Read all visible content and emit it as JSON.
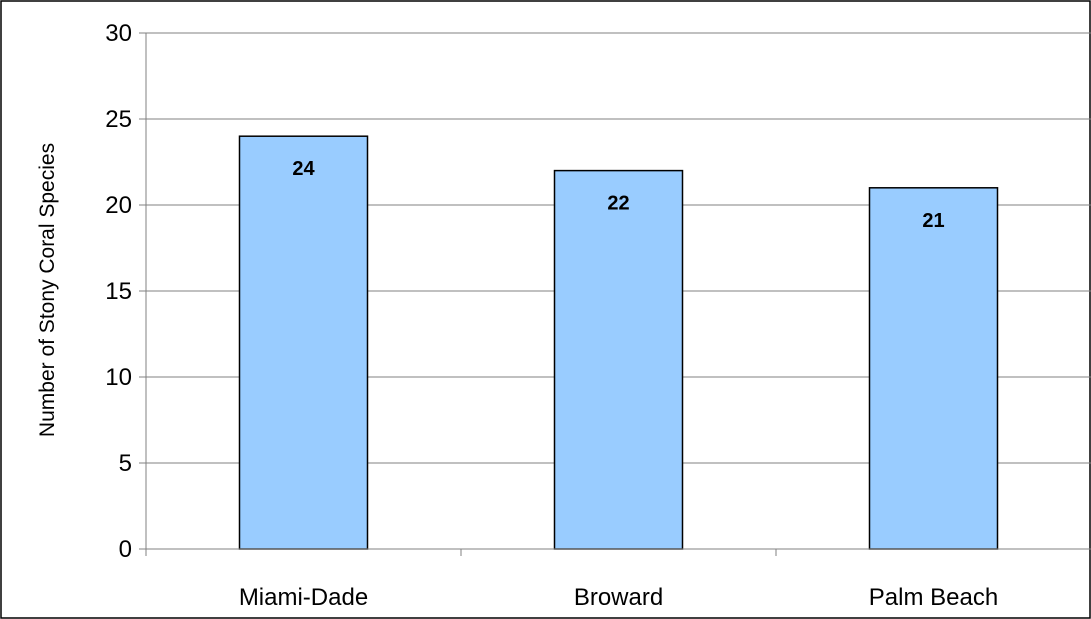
{
  "chart_data": {
    "type": "bar",
    "title": "",
    "xlabel": "",
    "ylabel": "Number of Stony Coral Species",
    "categories": [
      "Miami-Dade",
      "Broward",
      "Palm Beach"
    ],
    "values": [
      24,
      22,
      21
    ],
    "data_labels": [
      "24",
      "22",
      "21"
    ],
    "ylim": [
      0,
      30
    ],
    "yticks": [
      0,
      5,
      10,
      15,
      20,
      25,
      30
    ],
    "ytick_labels": [
      "0",
      "5",
      "10",
      "15",
      "20",
      "25",
      "30"
    ],
    "grid": true,
    "legend": "none",
    "colors": {
      "bar_fill": "#99ccff",
      "bar_stroke": "#000000",
      "grid": "#808080",
      "axis": "#808080",
      "frame": "#000000",
      "text": "#000000"
    }
  }
}
